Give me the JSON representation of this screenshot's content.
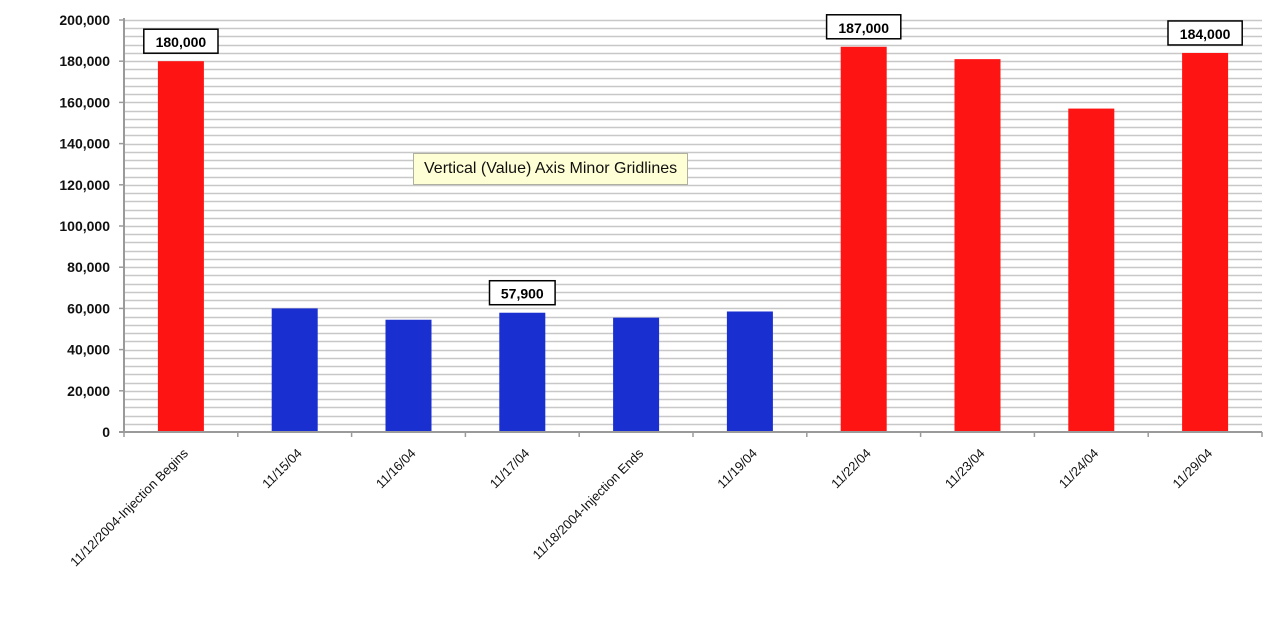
{
  "chart_data": {
    "type": "bar",
    "title": "",
    "xlabel": "",
    "ylabel": "",
    "ylim": [
      0,
      200000
    ],
    "y_ticks": [
      "0",
      "20,000",
      "40,000",
      "60,000",
      "80,000",
      "100,000",
      "120,000",
      "140,000",
      "160,000",
      "180,000",
      "200,000"
    ],
    "y_tick_values": [
      0,
      20000,
      40000,
      60000,
      80000,
      100000,
      120000,
      140000,
      160000,
      180000,
      200000
    ],
    "grid": "minor horizontal gridlines",
    "categories": [
      "11/12/2004-Injection Begins",
      "11/15/04",
      "11/16/04",
      "11/17/04",
      "11/18/2004-Injection Ends",
      "11/19/04",
      "11/22/04",
      "11/23/04",
      "11/24/04",
      "11/29/04"
    ],
    "values": [
      180000,
      60000,
      54500,
      57900,
      55500,
      58500,
      187000,
      181000,
      157000,
      184000
    ],
    "bar_colors": [
      "#ff1414",
      "#1a2fd0",
      "#1a2fd0",
      "#1a2fd0",
      "#1a2fd0",
      "#1a2fd0",
      "#ff1414",
      "#ff1414",
      "#ff1414",
      "#ff1414"
    ],
    "data_labels": [
      "180,000",
      "",
      "",
      "57,900",
      "",
      "",
      "187,000",
      "",
      "",
      "184,000"
    ],
    "colors": {
      "red": "#ff1414",
      "blue": "#1a2fd0",
      "gridline": "#c8c8c8",
      "axis": "#9a9a9a"
    }
  },
  "tooltip": {
    "text": "Vertical (Value) Axis Minor Gridlines"
  }
}
